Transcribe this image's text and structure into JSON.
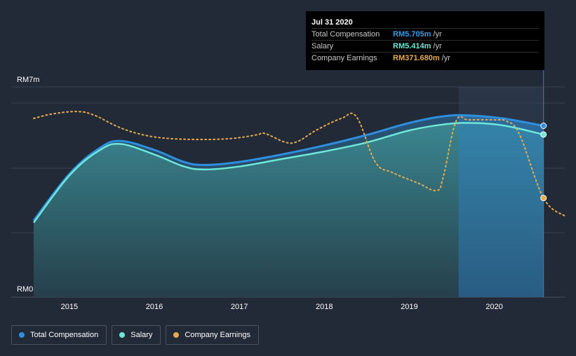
{
  "chart_data": {
    "type": "area",
    "ylabels": {
      "top": "RM7m",
      "bottom": "RM0"
    },
    "ylim": [
      0,
      7
    ],
    "xlim": [
      2014.58,
      2020.83
    ],
    "x_ticks": [
      "2015",
      "2016",
      "2017",
      "2018",
      "2019",
      "2020"
    ],
    "x_tick_values": [
      2015,
      2016,
      2017,
      2018,
      2019,
      2020
    ],
    "highlight_start": 2019.58,
    "series": [
      {
        "name": "Total Compensation",
        "color": "#2e8fe0",
        "x": [
          2014.58,
          2015.0,
          2015.35,
          2015.6,
          2016.0,
          2016.35,
          2016.6,
          2017.0,
          2017.5,
          2018.0,
          2018.5,
          2019.0,
          2019.4,
          2019.7,
          2020.1,
          2020.58
        ],
        "y": [
          2.55,
          4.1,
          4.95,
          5.2,
          4.9,
          4.5,
          4.4,
          4.5,
          4.75,
          5.05,
          5.4,
          5.8,
          6.02,
          6.05,
          5.95,
          5.705
        ]
      },
      {
        "name": "Salary",
        "color": "#6ee7d8",
        "x": [
          2014.58,
          2015.0,
          2015.35,
          2015.6,
          2016.0,
          2016.35,
          2016.6,
          2017.0,
          2017.5,
          2018.0,
          2018.5,
          2019.0,
          2019.4,
          2019.7,
          2020.1,
          2020.58
        ],
        "y": [
          2.48,
          4.05,
          4.88,
          5.1,
          4.75,
          4.35,
          4.25,
          4.35,
          4.6,
          4.85,
          5.15,
          5.55,
          5.75,
          5.8,
          5.72,
          5.414
        ]
      },
      {
        "name": "Company Earnings",
        "color": "#e8a94b",
        "dashed": true,
        "x": [
          2014.58,
          2014.8,
          2015.1,
          2015.3,
          2015.55,
          2015.8,
          2016.1,
          2016.5,
          2016.9,
          2017.2,
          2017.3,
          2017.55,
          2017.7,
          2017.9,
          2018.2,
          2018.38,
          2018.6,
          2018.8,
          2019.1,
          2019.32,
          2019.4,
          2019.55,
          2019.7,
          2020.0,
          2020.15,
          2020.3,
          2020.58,
          2020.83
        ],
        "y": [
          5.95,
          6.1,
          6.18,
          6.05,
          5.7,
          5.45,
          5.3,
          5.25,
          5.28,
          5.4,
          5.45,
          5.15,
          5.2,
          5.55,
          5.95,
          6.0,
          4.5,
          4.15,
          3.8,
          3.55,
          4.0,
          5.85,
          5.9,
          5.9,
          5.85,
          5.4,
          3.3,
          2.7
        ]
      }
    ]
  },
  "tooltip": {
    "date": "Jul 31 2020",
    "rows": [
      {
        "name": "Total Compensation",
        "value": "RM5.705m",
        "unit": "/yr",
        "color": "#3b9be8"
      },
      {
        "name": "Salary",
        "value": "RM5.414m",
        "unit": "/yr",
        "color": "#6ee7d8"
      },
      {
        "name": "Company Earnings",
        "value": "RM371.680m",
        "unit": "/yr",
        "color": "#e8a94b"
      }
    ]
  },
  "legend": [
    {
      "label": "Total Compensation",
      "color": "#2e8fe0"
    },
    {
      "label": "Salary",
      "color": "#6ee7d8"
    },
    {
      "label": "Company Earnings",
      "color": "#e8a94b"
    }
  ]
}
